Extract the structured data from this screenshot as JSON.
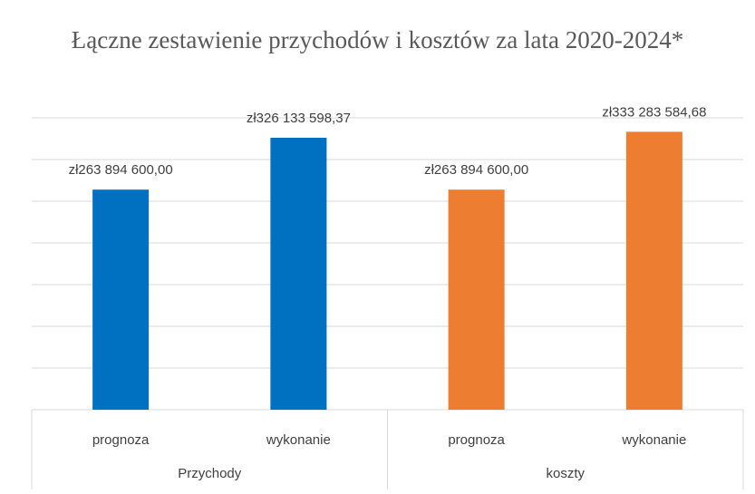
{
  "chart_data": {
    "type": "grouped-bar",
    "title": "Łączne zestawienie przychodów i kosztów za lata 2020-2024*",
    "groups": [
      {
        "name": "Przychody",
        "color": "#0070c0",
        "categories": [
          "prognoza",
          "wykonanie"
        ],
        "values": [
          263894600.0,
          326133598.37
        ],
        "value_labels": [
          "zł263 894 600,00",
          "zł326 133 598,37"
        ]
      },
      {
        "name": "koszty",
        "color": "#ed7d31",
        "categories": [
          "prognoza",
          "wykonanie"
        ],
        "values": [
          263894600.0,
          333283584.68
        ],
        "value_labels": [
          "zł263 894 600,00",
          "zł333 283 584,68"
        ]
      }
    ],
    "ylim": [
      0,
      350000000
    ],
    "yticks": [
      0,
      50000000,
      100000000,
      150000000,
      200000000,
      250000000,
      300000000,
      350000000
    ],
    "grid": true
  }
}
